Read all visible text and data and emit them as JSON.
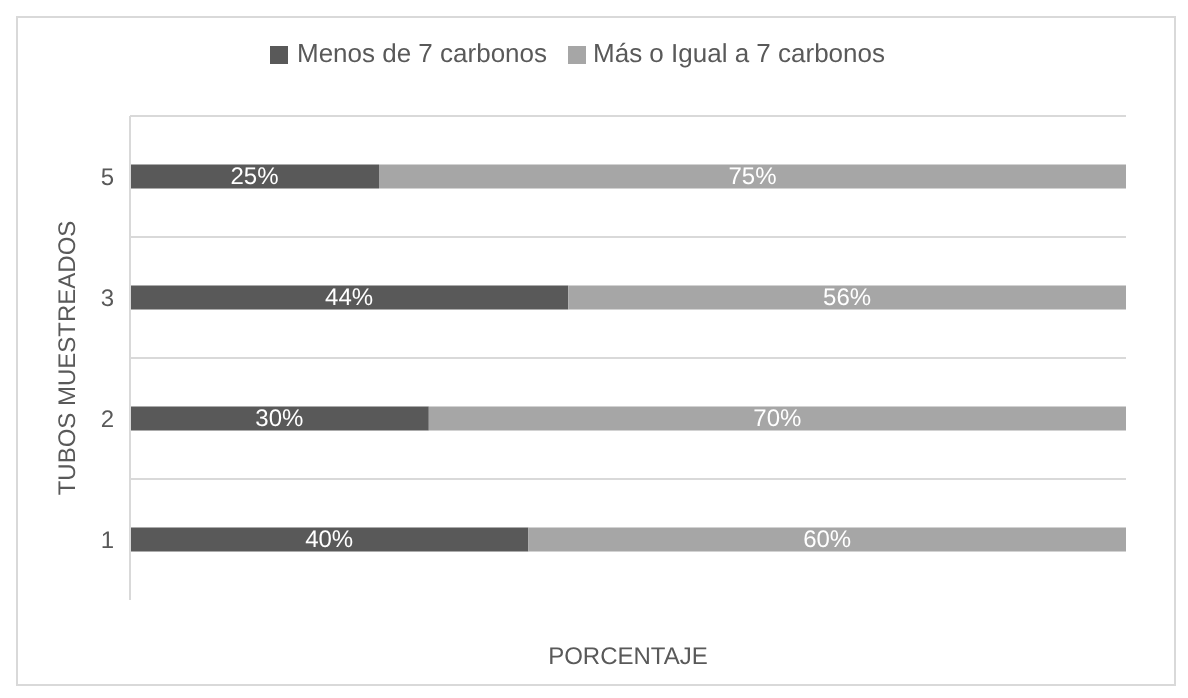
{
  "chart_data": {
    "type": "bar",
    "orientation": "horizontal",
    "stacked": true,
    "xlabel": "PORCENTAJE",
    "ylabel": "TUBOS MUESTREADOS",
    "categories": [
      "5",
      "3",
      "2",
      "1"
    ],
    "series": [
      {
        "name": "Menos de 7 carbonos",
        "color": "#595959",
        "values": [
          25,
          44,
          30,
          40
        ],
        "value_labels": [
          "25%",
          "44%",
          "30%",
          "40%"
        ]
      },
      {
        "name": "Más o Igual a 7 carbonos",
        "color": "#a6a6a6",
        "values": [
          75,
          56,
          70,
          60
        ],
        "value_labels": [
          "75%",
          "56%",
          "70%",
          "60%"
        ]
      }
    ],
    "xlim": [
      0,
      100
    ],
    "tick_labels": "y",
    "grid": "y",
    "legend": "top"
  }
}
